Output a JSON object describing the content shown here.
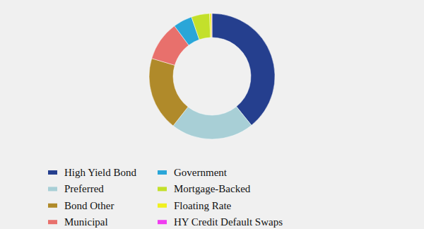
{
  "chart_data": {
    "type": "donut",
    "categories": [
      "High Yield Bond",
      "Preferred",
      "Bond Other",
      "Municipal",
      "Government",
      "Mortgage-Backed",
      "Floating Rate",
      "HY Credit Default Swaps"
    ],
    "values": [
      39.2,
      21.4,
      19,
      10.2,
      4.9,
      4.7,
      0.5,
      0.1
    ],
    "colors": [
      "#253f8e",
      "#a8cfd6",
      "#b08a2a",
      "#e8706c",
      "#2aa6d8",
      "#c3e02b",
      "#f0f020",
      "#f03cf0"
    ],
    "legend": "bottom"
  }
}
